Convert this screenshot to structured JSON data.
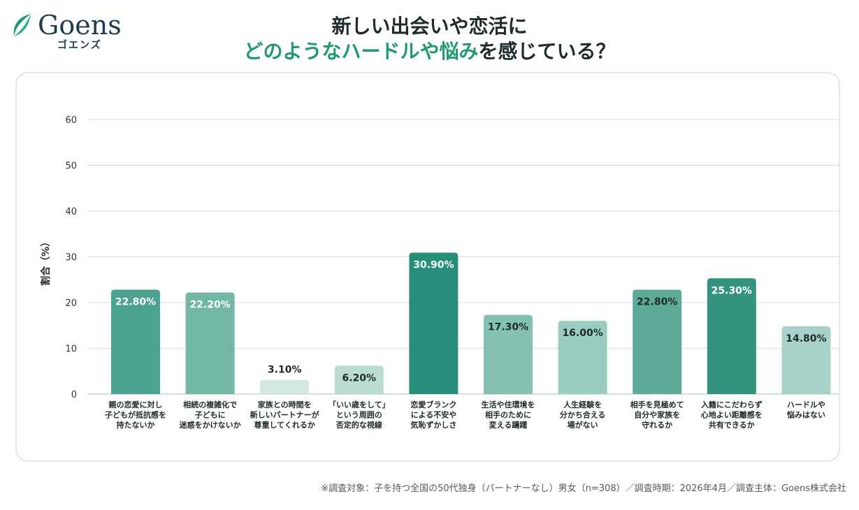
{
  "brand": {
    "logo_text": "Goens",
    "logo_kana": "ゴエンズ"
  },
  "title": {
    "line1": "新しい出会いや恋活に",
    "line2_accent": "どのようなハードルや悩み",
    "line2_rest": "を感じている？"
  },
  "colors": {
    "accent": "#1f9b6c",
    "panel_border": "#d9ebe5",
    "gridline": "#cfe3dc"
  },
  "chart_data": {
    "type": "bar",
    "ylabel": "割合（%）",
    "ylim": [
      0,
      60
    ],
    "yticks": [
      0,
      10,
      20,
      30,
      40,
      50,
      60
    ],
    "grid": true,
    "categories": [
      [
        "親の恋愛に対し",
        "子どもが抵抗感を",
        "持たないか"
      ],
      [
        "相続の複雑化で",
        "子どもに",
        "迷惑をかけないか"
      ],
      [
        "家族との時間を",
        "新しいパートナーが",
        "尊重してくれるか"
      ],
      [
        "「いい歳をして」",
        "という周囲の",
        "否定的な視線"
      ],
      [
        "恋愛ブランク",
        "による不安や",
        "気恥ずかしさ"
      ],
      [
        "生活や住環境を",
        "相手のために",
        "変える躊躇"
      ],
      [
        "人生経験を",
        "分かち合える",
        "場がない"
      ],
      [
        "相手を見極めて",
        "自分や家族を",
        "守れるか"
      ],
      [
        "入籍にこだわらず",
        "心地よい距離感を",
        "共有できるか"
      ],
      [
        "ハードルや",
        "悩みはない"
      ]
    ],
    "values": [
      22.8,
      22.2,
      3.1,
      6.2,
      30.9,
      17.3,
      16.0,
      22.8,
      25.3,
      14.8
    ],
    "value_labels": [
      "22.80%",
      "22.20%",
      "3.10%",
      "6.20%",
      "30.90%",
      "17.30%",
      "16.00%",
      "22.80%",
      "25.30%",
      "14.80%"
    ],
    "bar_colors": [
      "#4aa28f",
      "#72b6a6",
      "#d3e7e1",
      "#bcdcd3",
      "#278e7a",
      "#84c1b3",
      "#9bccc1",
      "#5daa99",
      "#33937f",
      "#a8d2c8"
    ],
    "label_colors": [
      "#ffffff",
      "#ffffff",
      "#1f2a2a",
      "#1f2a2a",
      "#ffffff",
      "#1f2a2a",
      "#1f2a2a",
      "#1f2a2a",
      "#ffffff",
      "#1f2a2a"
    ]
  },
  "footnote": "※調査対象：子を持つ全国の50代独身（パートナーなし）男女（n=308）／調査時期：2026年4月／調査主体：Goens株式会社"
}
